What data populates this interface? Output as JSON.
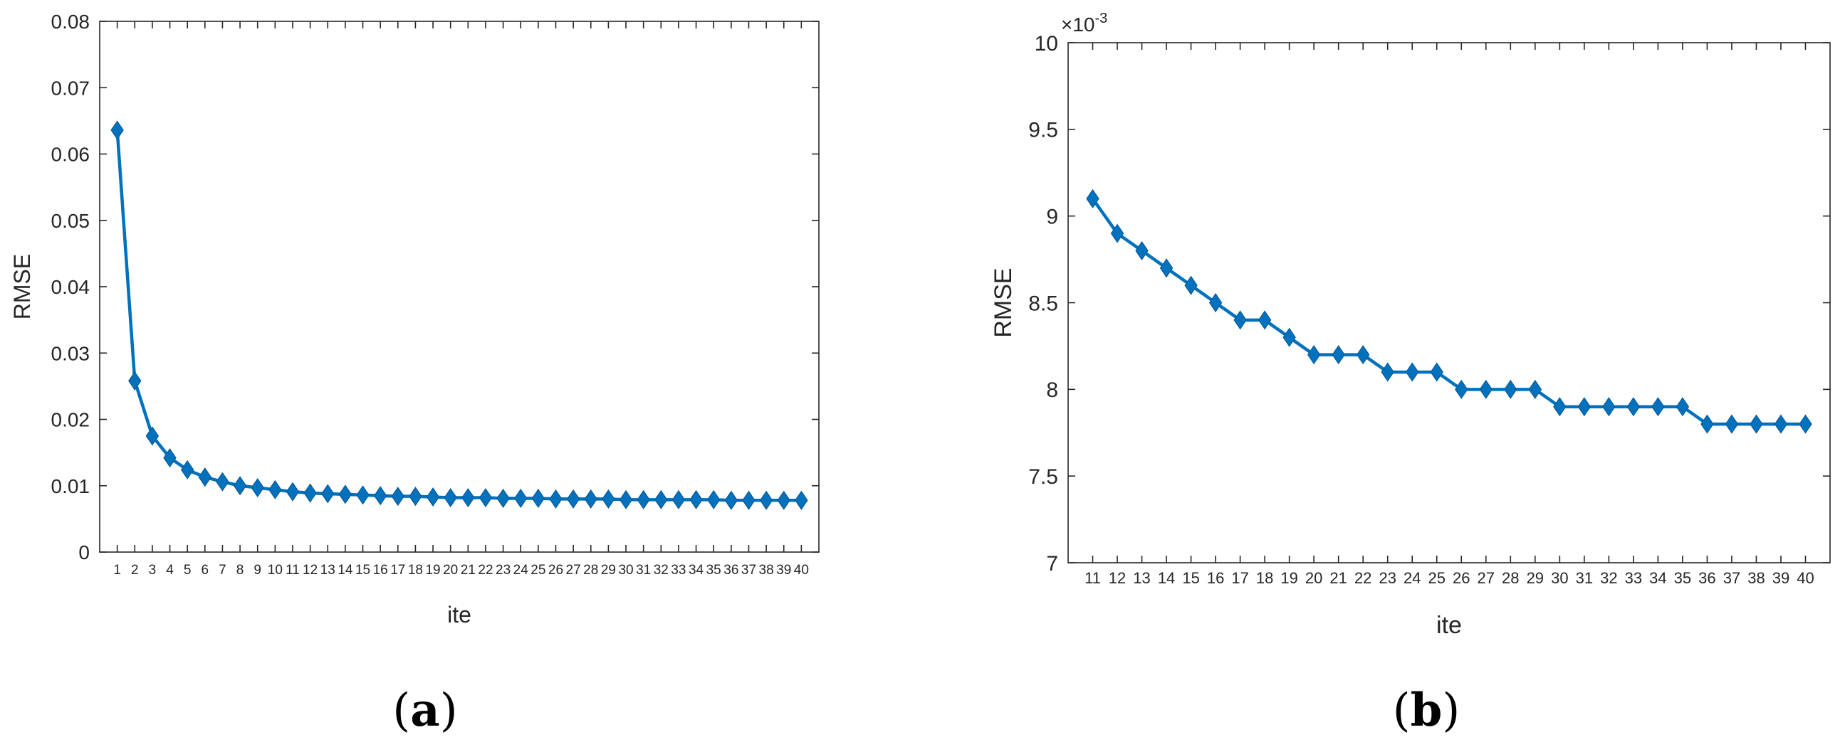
{
  "chart_data": [
    {
      "type": "line",
      "panel_label": "a",
      "xlabel": "ite",
      "ylabel": "RMSE",
      "categories": [
        "1",
        "2",
        "3",
        "4",
        "5",
        "6",
        "7",
        "8",
        "9",
        "10",
        "11",
        "12",
        "13",
        "14",
        "15",
        "16",
        "17",
        "18",
        "19",
        "20",
        "21",
        "22",
        "23",
        "24",
        "25",
        "26",
        "27",
        "28",
        "29",
        "30",
        "31",
        "32",
        "33",
        "34",
        "35",
        "36",
        "37",
        "38",
        "39",
        "40"
      ],
      "values": [
        0.0636,
        0.0258,
        0.0175,
        0.0142,
        0.0124,
        0.0113,
        0.0106,
        0.01,
        0.0097,
        0.0094,
        0.0091,
        0.0089,
        0.0088,
        0.0087,
        0.0086,
        0.0085,
        0.0084,
        0.0084,
        0.0083,
        0.0082,
        0.0082,
        0.0082,
        0.0081,
        0.0081,
        0.0081,
        0.008,
        0.008,
        0.008,
        0.008,
        0.0079,
        0.0079,
        0.0079,
        0.0079,
        0.0079,
        0.0079,
        0.0078,
        0.0078,
        0.0078,
        0.0078,
        0.0078
      ],
      "ylim": [
        0,
        0.08
      ],
      "yticks": [
        "0",
        "0.01",
        "0.02",
        "0.03",
        "0.04",
        "0.05",
        "0.06",
        "0.07",
        "0.08"
      ],
      "marker": "diamond",
      "line_color": "#0072BD",
      "grid": false
    },
    {
      "type": "line",
      "panel_label": "b",
      "xlabel": "ite",
      "ylabel": "RMSE",
      "exponent_base": "×10",
      "exponent_power": "-3",
      "categories": [
        "11",
        "12",
        "13",
        "14",
        "15",
        "16",
        "17",
        "18",
        "19",
        "20",
        "21",
        "22",
        "23",
        "24",
        "25",
        "26",
        "27",
        "28",
        "29",
        "30",
        "31",
        "32",
        "33",
        "34",
        "35",
        "36",
        "37",
        "38",
        "39",
        "40"
      ],
      "values": [
        9.1,
        8.9,
        8.8,
        8.7,
        8.6,
        8.5,
        8.4,
        8.4,
        8.3,
        8.2,
        8.2,
        8.2,
        8.1,
        8.1,
        8.1,
        8.0,
        8.0,
        8.0,
        8.0,
        7.9,
        7.9,
        7.9,
        7.9,
        7.9,
        7.9,
        7.8,
        7.8,
        7.8,
        7.8,
        7.8
      ],
      "ylim": [
        7,
        10
      ],
      "yticks": [
        "7",
        "7.5",
        "8",
        "8.5",
        "9",
        "9.5",
        "10"
      ],
      "marker": "diamond",
      "line_color": "#0072BD",
      "grid": false
    }
  ]
}
